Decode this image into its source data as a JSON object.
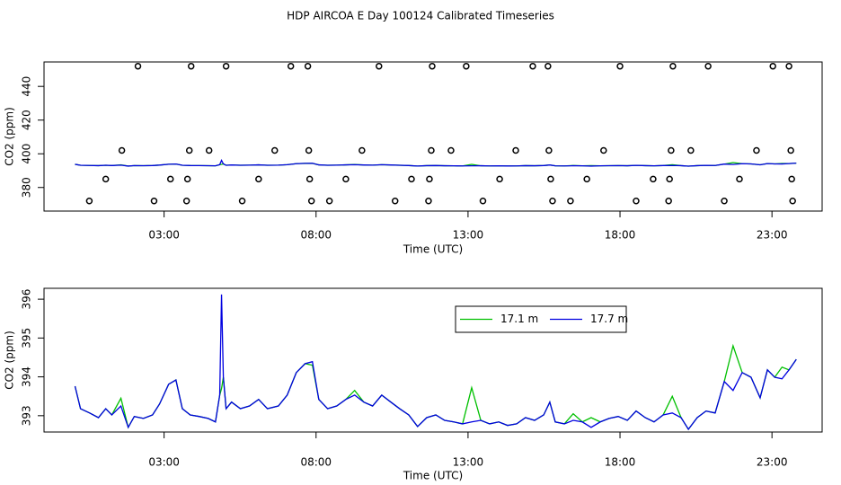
{
  "chart_data": [
    {
      "type": "line",
      "title": "HDP AIRCOA E  Day 100124  Calibrated Timeseries",
      "x_label": "Time (UTC)",
      "y_label": "CO2 (ppm)",
      "xlim": [
        -0.95,
        24.65
      ],
      "ylim": [
        366,
        454.5
      ],
      "xticks": [
        {
          "value": 3,
          "label": "03:00"
        },
        {
          "value": 8,
          "label": "08:00"
        },
        {
          "value": 13,
          "label": "13:00"
        },
        {
          "value": 18,
          "label": "18:00"
        },
        {
          "value": 23,
          "label": "23:00"
        }
      ],
      "yticks": [
        380,
        400,
        420,
        440
      ],
      "x": [
        0.07,
        0.25,
        0.55,
        0.84,
        1.08,
        1.28,
        1.58,
        1.82,
        2.02,
        2.32,
        2.62,
        2.85,
        3.15,
        3.39,
        3.6,
        3.86,
        4.15,
        4.45,
        4.69,
        4.83,
        4.89,
        4.95,
        5.04,
        5.22,
        5.51,
        5.81,
        6.11,
        6.4,
        6.76,
        7.05,
        7.35,
        7.64,
        7.88,
        8.09,
        8.38,
        8.68,
        8.98,
        9.27,
        9.57,
        9.86,
        10.16,
        10.46,
        10.75,
        11.05,
        11.34,
        11.64,
        11.94,
        12.23,
        12.53,
        12.82,
        13.12,
        13.42,
        13.71,
        14.01,
        14.3,
        14.6,
        14.89,
        15.19,
        15.49,
        15.69,
        15.87,
        16.17,
        16.46,
        16.76,
        17.05,
        17.35,
        17.64,
        17.94,
        18.24,
        18.53,
        18.83,
        19.12,
        19.42,
        19.72,
        20.01,
        20.25,
        20.54,
        20.83,
        21.13,
        21.43,
        21.72,
        22.02,
        22.31,
        22.61,
        22.85,
        23.09,
        23.33,
        23.56,
        23.8
      ],
      "series": [
        {
          "type": "scatter",
          "color": "#000000",
          "x": [
            2.14,
            3.89,
            5.04,
            7.17,
            7.73,
            10.07,
            11.82,
            12.94,
            15.13,
            15.63,
            18.0,
            19.74,
            20.9,
            23.03,
            23.56,
            1.61,
            3.83,
            4.48,
            6.64,
            7.76,
            9.51,
            11.79,
            12.44,
            14.57,
            15.66,
            17.46,
            19.68,
            20.33,
            22.49,
            23.62,
            1.08,
            3.21,
            3.77,
            6.11,
            7.79,
            8.98,
            11.14,
            11.73,
            14.04,
            15.72,
            16.91,
            19.09,
            19.63,
            21.93,
            23.65,
            0.54,
            2.67,
            3.74,
            5.57,
            7.85,
            8.44,
            10.6,
            11.7,
            13.49,
            15.78,
            16.37,
            18.53,
            19.6,
            21.43,
            23.68
          ],
          "values": [
            452,
            452,
            452,
            452,
            452,
            452,
            452,
            452,
            452,
            452,
            452,
            452,
            452,
            452,
            452,
            402,
            402,
            402,
            402,
            402,
            402,
            402,
            402,
            402,
            402,
            402,
            402,
            402,
            402,
            402,
            385,
            385,
            385,
            385,
            385,
            385,
            385,
            385,
            385,
            385,
            385,
            385,
            385,
            385,
            385,
            372,
            372,
            372,
            372,
            372,
            372,
            372,
            372,
            372,
            372,
            372,
            372,
            372,
            372,
            372
          ]
        },
        {
          "color": "#00c000",
          "values": [
            393.76,
            393.18,
            393.07,
            392.95,
            393.18,
            393.02,
            393.45,
            392.7,
            392.98,
            392.93,
            393.02,
            393.3,
            393.81,
            393.92,
            393.18,
            393.02,
            392.98,
            392.93,
            392.84,
            393.53,
            393.7,
            393.99,
            393.18,
            393.35,
            393.18,
            393.25,
            393.42,
            393.18,
            393.25,
            393.53,
            394.11,
            394.34,
            394.3,
            393.42,
            393.18,
            393.25,
            393.42,
            393.65,
            393.35,
            393.25,
            393.53,
            393.35,
            393.18,
            393.02,
            392.72,
            392.95,
            393.02,
            392.88,
            392.84,
            392.79,
            393.72,
            392.88,
            392.79,
            392.84,
            392.75,
            392.79,
            392.95,
            392.88,
            393.02,
            393.35,
            392.84,
            392.79,
            393.05,
            392.84,
            392.95,
            392.84,
            392.93,
            392.98,
            392.88,
            393.12,
            392.95,
            392.84,
            393.02,
            393.5,
            392.95,
            392.65,
            392.95,
            393.12,
            393.07,
            393.88,
            394.8,
            394.11,
            393.99,
            393.46,
            394.18,
            393.99,
            394.25,
            394.18,
            394.45
          ]
        },
        {
          "color": "#0000e0",
          "values": [
            393.76,
            393.18,
            393.07,
            392.95,
            393.18,
            393.02,
            393.25,
            392.7,
            392.98,
            392.93,
            393.02,
            393.3,
            393.81,
            393.92,
            393.18,
            393.02,
            392.98,
            392.93,
            392.84,
            393.53,
            396.12,
            393.99,
            393.18,
            393.35,
            393.18,
            393.25,
            393.42,
            393.18,
            393.25,
            393.53,
            394.11,
            394.34,
            394.39,
            393.42,
            393.18,
            393.25,
            393.42,
            393.53,
            393.35,
            393.25,
            393.53,
            393.35,
            393.18,
            393.02,
            392.72,
            392.95,
            393.02,
            392.88,
            392.84,
            392.79,
            392.84,
            392.88,
            392.79,
            392.84,
            392.75,
            392.79,
            392.95,
            392.88,
            393.02,
            393.35,
            392.84,
            392.79,
            392.88,
            392.84,
            392.7,
            392.84,
            392.93,
            392.98,
            392.88,
            393.12,
            392.95,
            392.84,
            393.02,
            393.07,
            392.95,
            392.65,
            392.95,
            393.12,
            393.07,
            393.88,
            393.65,
            394.11,
            393.99,
            393.46,
            394.18,
            393.99,
            393.95,
            394.18,
            394.45
          ]
        }
      ]
    },
    {
      "type": "line",
      "x_label": "Time (UTC)",
      "y_label": "CO2 (ppm)",
      "xlim": [
        -0.95,
        24.65
      ],
      "ylim": [
        392.58,
        396.28
      ],
      "xticks": [
        {
          "value": 3,
          "label": "03:00"
        },
        {
          "value": 8,
          "label": "08:00"
        },
        {
          "value": 13,
          "label": "13:00"
        },
        {
          "value": 18,
          "label": "18:00"
        },
        {
          "value": 23,
          "label": "23:00"
        }
      ],
      "yticks": [
        393,
        394,
        395,
        396
      ],
      "legend": "top",
      "x": [
        0.07,
        0.25,
        0.55,
        0.84,
        1.08,
        1.28,
        1.58,
        1.82,
        2.02,
        2.32,
        2.62,
        2.85,
        3.15,
        3.39,
        3.6,
        3.86,
        4.15,
        4.45,
        4.69,
        4.83,
        4.89,
        4.95,
        5.04,
        5.22,
        5.51,
        5.81,
        6.11,
        6.4,
        6.76,
        7.05,
        7.35,
        7.64,
        7.88,
        8.09,
        8.38,
        8.68,
        8.98,
        9.27,
        9.57,
        9.86,
        10.16,
        10.46,
        10.75,
        11.05,
        11.34,
        11.64,
        11.94,
        12.23,
        12.53,
        12.82,
        13.12,
        13.42,
        13.71,
        14.01,
        14.3,
        14.6,
        14.89,
        15.19,
        15.49,
        15.69,
        15.87,
        16.17,
        16.46,
        16.76,
        17.05,
        17.35,
        17.64,
        17.94,
        18.24,
        18.53,
        18.83,
        19.12,
        19.42,
        19.72,
        20.01,
        20.25,
        20.54,
        20.83,
        21.13,
        21.43,
        21.72,
        22.02,
        22.31,
        22.61,
        22.85,
        23.09,
        23.33,
        23.56,
        23.8
      ],
      "series": [
        {
          "name": "17.1 m",
          "color": "#00c000",
          "values": [
            393.76,
            393.18,
            393.07,
            392.95,
            393.18,
            393.02,
            393.45,
            392.7,
            392.98,
            392.93,
            393.02,
            393.3,
            393.81,
            393.92,
            393.18,
            393.02,
            392.98,
            392.93,
            392.84,
            393.53,
            393.7,
            393.99,
            393.18,
            393.35,
            393.18,
            393.25,
            393.42,
            393.18,
            393.25,
            393.53,
            394.11,
            394.34,
            394.3,
            393.42,
            393.18,
            393.25,
            393.42,
            393.65,
            393.35,
            393.25,
            393.53,
            393.35,
            393.18,
            393.02,
            392.72,
            392.95,
            393.02,
            392.88,
            392.84,
            392.79,
            393.72,
            392.88,
            392.79,
            392.84,
            392.75,
            392.79,
            392.95,
            392.88,
            393.02,
            393.35,
            392.84,
            392.79,
            393.05,
            392.84,
            392.95,
            392.84,
            392.93,
            392.98,
            392.88,
            393.12,
            392.95,
            392.84,
            393.02,
            393.5,
            392.95,
            392.65,
            392.95,
            393.12,
            393.07,
            393.88,
            394.8,
            394.11,
            393.99,
            393.46,
            394.18,
            393.99,
            394.25,
            394.18,
            394.45
          ]
        },
        {
          "name": "17.7 m",
          "color": "#0000e0",
          "values": [
            393.76,
            393.18,
            393.07,
            392.95,
            393.18,
            393.02,
            393.25,
            392.7,
            392.98,
            392.93,
            393.02,
            393.3,
            393.81,
            393.92,
            393.18,
            393.02,
            392.98,
            392.93,
            392.84,
            393.53,
            396.12,
            393.99,
            393.18,
            393.35,
            393.18,
            393.25,
            393.42,
            393.18,
            393.25,
            393.53,
            394.11,
            394.34,
            394.39,
            393.42,
            393.18,
            393.25,
            393.42,
            393.53,
            393.35,
            393.25,
            393.53,
            393.35,
            393.18,
            393.02,
            392.72,
            392.95,
            393.02,
            392.88,
            392.84,
            392.79,
            392.84,
            392.88,
            392.79,
            392.84,
            392.75,
            392.79,
            392.95,
            392.88,
            393.02,
            393.35,
            392.84,
            392.79,
            392.88,
            392.84,
            392.7,
            392.84,
            392.93,
            392.98,
            392.88,
            393.12,
            392.95,
            392.84,
            393.02,
            393.07,
            392.95,
            392.65,
            392.95,
            393.12,
            393.07,
            393.88,
            393.65,
            394.11,
            393.99,
            393.46,
            394.18,
            393.99,
            393.95,
            394.18,
            394.45
          ]
        }
      ]
    }
  ]
}
